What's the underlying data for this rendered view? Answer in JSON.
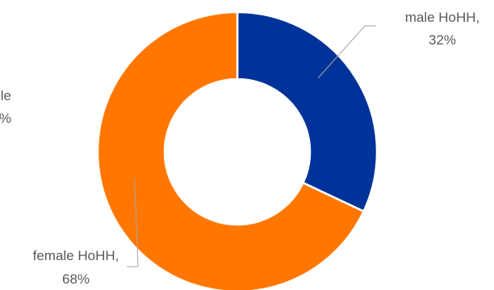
{
  "chart_data": {
    "type": "pie",
    "variant": "donut",
    "slices": [
      {
        "label": "male HoHH,",
        "value": 32,
        "value_label": "32%",
        "color": "#003399"
      },
      {
        "label": "female HoHH,",
        "value": 68,
        "value_label": "68%",
        "color": "#FF7700"
      }
    ],
    "partial_label_left": {
      "line1": "le",
      "line2": "%"
    },
    "leader_line_color": "#A6A6A6",
    "label_color": "#595959",
    "legend": "none",
    "start_angle": "12 o'clock, clockwise"
  }
}
